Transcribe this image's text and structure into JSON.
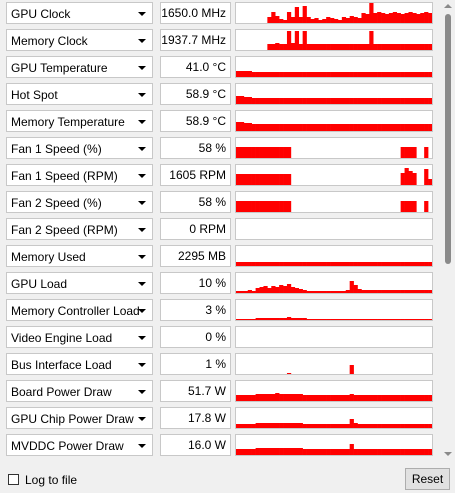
{
  "colors": {
    "graph_fill": "#ff0000",
    "graph_background": "#ffffff"
  },
  "sensors": [
    {
      "label": "GPU Clock",
      "value": "1650.0 MHz",
      "icon": "chevron-down-icon",
      "trace": [
        0,
        0,
        0,
        0,
        0,
        0,
        0,
        0,
        0.3,
        0.55,
        0.35,
        0.2,
        0.15,
        0.55,
        0.3,
        0.8,
        0.3,
        0.85,
        0.3,
        0.2,
        0.25,
        0.15,
        0.2,
        0.3,
        0.25,
        0.2,
        0.15,
        0.3,
        0.25,
        0.35,
        0.3,
        0.25,
        0.5,
        0.45,
        1.0,
        0.5,
        0.55,
        0.5,
        0.45,
        0.5,
        0.55,
        0.5,
        0.45,
        0.5,
        0.55,
        0.5,
        0.45,
        0.5,
        0.55,
        0.5
      ]
    },
    {
      "label": "Memory Clock",
      "value": "1937.7 MHz",
      "icon": "chevron-down-icon",
      "trace": [
        0,
        0,
        0,
        0,
        0,
        0,
        0,
        0,
        0.3,
        0.3,
        0.35,
        0.3,
        0.3,
        0.95,
        0.35,
        0.95,
        0.3,
        0.95,
        0.3,
        0.3,
        0.3,
        0.3,
        0.3,
        0.3,
        0.3,
        0.3,
        0.3,
        0.3,
        0.3,
        0.3,
        0.3,
        0.3,
        0.3,
        0.3,
        0.95,
        0.3,
        0.3,
        0.3,
        0.3,
        0.3,
        0.3,
        0.3,
        0.3,
        0.3,
        0.3,
        0.3,
        0.3,
        0.3,
        0.3,
        0.3
      ]
    },
    {
      "label": "GPU Temperature",
      "value": "41.0 °C",
      "icon": "chevron-down-icon",
      "trace": [
        0.3,
        0.3,
        0.3,
        0.3,
        0.25,
        0.25,
        0.25,
        0.25,
        0.25,
        0.25,
        0.25,
        0.25,
        0.25,
        0.25,
        0.25,
        0.25,
        0.25,
        0.25,
        0.25,
        0.25,
        0.25,
        0.25,
        0.25,
        0.25,
        0.25,
        0.25,
        0.25,
        0.25,
        0.25,
        0.25,
        0.25,
        0.25,
        0.25,
        0.25,
        0.25,
        0.25,
        0.25,
        0.25,
        0.25,
        0.25,
        0.25,
        0.25,
        0.25,
        0.25,
        0.25,
        0.25,
        0.25,
        0.25,
        0.25,
        0.25
      ]
    },
    {
      "label": "Hot Spot",
      "value": "58.9 °C",
      "icon": "chevron-down-icon",
      "trace": [
        0.4,
        0.4,
        0.35,
        0.35,
        0.3,
        0.3,
        0.3,
        0.3,
        0.3,
        0.3,
        0.3,
        0.3,
        0.3,
        0.3,
        0.3,
        0.3,
        0.3,
        0.3,
        0.3,
        0.3,
        0.3,
        0.3,
        0.3,
        0.3,
        0.3,
        0.3,
        0.3,
        0.3,
        0.3,
        0.3,
        0.3,
        0.3,
        0.3,
        0.3,
        0.3,
        0.3,
        0.3,
        0.3,
        0.3,
        0.3,
        0.3,
        0.3,
        0.3,
        0.3,
        0.3,
        0.3,
        0.3,
        0.3,
        0.3,
        0.3
      ]
    },
    {
      "label": "Memory Temperature",
      "value": "58.9 °C",
      "icon": "chevron-down-icon",
      "trace": [
        0.45,
        0.45,
        0.4,
        0.4,
        0.35,
        0.35,
        0.35,
        0.35,
        0.35,
        0.35,
        0.35,
        0.35,
        0.35,
        0.35,
        0.35,
        0.35,
        0.35,
        0.35,
        0.35,
        0.35,
        0.35,
        0.35,
        0.35,
        0.35,
        0.35,
        0.35,
        0.35,
        0.35,
        0.35,
        0.35,
        0.35,
        0.35,
        0.35,
        0.35,
        0.35,
        0.35,
        0.35,
        0.35,
        0.35,
        0.35,
        0.35,
        0.35,
        0.35,
        0.35,
        0.35,
        0.35,
        0.35,
        0.35,
        0.35,
        0.35
      ]
    },
    {
      "label": "Fan 1 Speed (%)",
      "value": "58 %",
      "icon": "chevron-down-icon",
      "trace": [
        0.55,
        0.55,
        0.55,
        0.55,
        0.55,
        0.55,
        0.55,
        0.55,
        0.55,
        0.55,
        0.55,
        0.55,
        0.55,
        0.55,
        0,
        0,
        0,
        0,
        0,
        0,
        0,
        0,
        0,
        0,
        0,
        0,
        0,
        0,
        0,
        0,
        0,
        0,
        0,
        0,
        0,
        0,
        0,
        0,
        0,
        0,
        0,
        0,
        0.55,
        0.55,
        0.55,
        0.55,
        0,
        0,
        0.55,
        0
      ]
    },
    {
      "label": "Fan 1 Speed (RPM)",
      "value": "1605 RPM",
      "icon": "chevron-down-icon",
      "trace": [
        0.55,
        0.55,
        0.55,
        0.55,
        0.55,
        0.55,
        0.55,
        0.55,
        0.55,
        0.55,
        0.55,
        0.55,
        0.55,
        0.55,
        0,
        0,
        0,
        0,
        0,
        0,
        0,
        0,
        0,
        0,
        0,
        0,
        0,
        0,
        0,
        0,
        0,
        0,
        0,
        0,
        0,
        0,
        0,
        0,
        0,
        0,
        0,
        0,
        0.6,
        0.85,
        0.7,
        0.6,
        0,
        0,
        0.8,
        0.3
      ]
    },
    {
      "label": "Fan 2 Speed (%)",
      "value": "58 %",
      "icon": "chevron-down-icon",
      "trace": [
        0.55,
        0.55,
        0.55,
        0.55,
        0.55,
        0.55,
        0.55,
        0.55,
        0.55,
        0.55,
        0.55,
        0.55,
        0.55,
        0.55,
        0,
        0,
        0,
        0,
        0,
        0,
        0,
        0,
        0,
        0,
        0,
        0,
        0,
        0,
        0,
        0,
        0,
        0,
        0,
        0,
        0,
        0,
        0,
        0,
        0,
        0,
        0,
        0,
        0.55,
        0.55,
        0.55,
        0.55,
        0,
        0,
        0.55,
        0
      ]
    },
    {
      "label": "Fan 2 Speed (RPM)",
      "value": "0 RPM",
      "icon": "chevron-down-icon",
      "trace": [
        0,
        0,
        0,
        0,
        0,
        0,
        0,
        0,
        0,
        0,
        0,
        0,
        0,
        0,
        0,
        0,
        0,
        0,
        0,
        0,
        0,
        0,
        0,
        0,
        0,
        0,
        0,
        0,
        0,
        0,
        0,
        0,
        0,
        0,
        0,
        0,
        0,
        0,
        0,
        0,
        0,
        0,
        0,
        0,
        0,
        0,
        0,
        0,
        0,
        0
      ]
    },
    {
      "label": "Memory Used",
      "value": "2295 MB",
      "icon": "chevron-down-icon",
      "trace": [
        0.2,
        0.2,
        0.2,
        0.2,
        0.2,
        0.2,
        0.2,
        0.2,
        0.2,
        0.2,
        0.2,
        0.2,
        0.2,
        0.2,
        0.2,
        0.2,
        0.2,
        0.2,
        0.2,
        0.2,
        0.2,
        0.2,
        0.2,
        0.2,
        0.2,
        0.2,
        0.2,
        0.2,
        0.2,
        0.2,
        0.2,
        0.2,
        0.2,
        0.2,
        0.2,
        0.2,
        0.2,
        0.2,
        0.2,
        0.2,
        0.2,
        0.2,
        0.2,
        0.2,
        0.2,
        0.2,
        0.2,
        0.2,
        0.2,
        0.2
      ]
    },
    {
      "label": "GPU Load",
      "value": "10 %",
      "icon": "chevron-down-icon",
      "trace": [
        0.1,
        0.1,
        0.1,
        0.15,
        0.1,
        0.25,
        0.3,
        0.35,
        0.25,
        0.35,
        0.3,
        0.4,
        0.35,
        0.45,
        0.3,
        0.25,
        0.2,
        0.15,
        0.1,
        0.1,
        0.1,
        0.1,
        0.1,
        0.1,
        0.1,
        0.1,
        0.1,
        0.1,
        0.15,
        0.6,
        0.4,
        0.2,
        0.15,
        0.15,
        0.15,
        0.15,
        0.15,
        0.15,
        0.15,
        0.15,
        0.15,
        0.15,
        0.15,
        0.15,
        0.15,
        0.15,
        0.15,
        0.15,
        0.15,
        0.15
      ]
    },
    {
      "label": "Memory Controller Load",
      "value": "3 %",
      "icon": "chevron-down-icon",
      "trace": [
        0.05,
        0.05,
        0.05,
        0.05,
        0.05,
        0.1,
        0.1,
        0.1,
        0.1,
        0.1,
        0.1,
        0.1,
        0.1,
        0.15,
        0.1,
        0.1,
        0.1,
        0.1,
        0.05,
        0.05,
        0.05,
        0.05,
        0.05,
        0.05,
        0.05,
        0.05,
        0.05,
        0.05,
        0.05,
        0.05,
        0.05,
        0.05,
        0.05,
        0.05,
        0.05,
        0.05,
        0.05,
        0.05,
        0.05,
        0.05,
        0.05,
        0.05,
        0.05,
        0.05,
        0.05,
        0.05,
        0.05,
        0.05,
        0.05,
        0.05
      ]
    },
    {
      "label": "Video Engine Load",
      "value": "0 %",
      "icon": "chevron-down-icon",
      "trace": [
        0,
        0,
        0,
        0,
        0,
        0,
        0,
        0,
        0,
        0,
        0,
        0,
        0,
        0,
        0,
        0,
        0,
        0,
        0,
        0,
        0,
        0,
        0,
        0,
        0,
        0,
        0,
        0,
        0,
        0,
        0,
        0,
        0,
        0,
        0,
        0,
        0,
        0,
        0,
        0,
        0,
        0,
        0,
        0,
        0,
        0,
        0,
        0,
        0,
        0
      ]
    },
    {
      "label": "Bus Interface Load",
      "value": "1 %",
      "icon": "chevron-down-icon",
      "trace": [
        0,
        0,
        0,
        0,
        0,
        0,
        0,
        0,
        0,
        0,
        0,
        0,
        0,
        0.05,
        0,
        0,
        0,
        0,
        0,
        0,
        0,
        0,
        0,
        0,
        0,
        0,
        0,
        0,
        0,
        0.45,
        0,
        0,
        0,
        0,
        0,
        0,
        0,
        0,
        0,
        0,
        0,
        0,
        0,
        0,
        0,
        0,
        0,
        0,
        0,
        0
      ]
    },
    {
      "label": "Board Power Draw",
      "value": "51.7 W",
      "icon": "chevron-down-icon",
      "trace": [
        0.3,
        0.3,
        0.3,
        0.3,
        0.3,
        0.35,
        0.35,
        0.35,
        0.35,
        0.35,
        0.4,
        0.35,
        0.35,
        0.35,
        0.35,
        0.35,
        0.35,
        0.3,
        0.3,
        0.3,
        0.3,
        0.3,
        0.3,
        0.3,
        0.3,
        0.3,
        0.3,
        0.3,
        0.3,
        0.35,
        0.3,
        0.3,
        0.3,
        0.3,
        0.3,
        0.3,
        0.3,
        0.3,
        0.3,
        0.3,
        0.3,
        0.3,
        0.3,
        0.3,
        0.3,
        0.3,
        0.3,
        0.3,
        0.3,
        0.3
      ]
    },
    {
      "label": "GPU Chip Power Draw",
      "value": "17.8 W",
      "icon": "chevron-down-icon",
      "trace": [
        0.2,
        0.2,
        0.2,
        0.2,
        0.2,
        0.25,
        0.25,
        0.25,
        0.25,
        0.25,
        0.25,
        0.25,
        0.25,
        0.25,
        0.25,
        0.25,
        0.25,
        0.2,
        0.2,
        0.2,
        0.2,
        0.2,
        0.2,
        0.2,
        0.2,
        0.2,
        0.2,
        0.2,
        0.2,
        0.45,
        0.25,
        0.2,
        0.2,
        0.2,
        0.2,
        0.2,
        0.2,
        0.2,
        0.2,
        0.2,
        0.2,
        0.2,
        0.2,
        0.2,
        0.2,
        0.2,
        0.2,
        0.2,
        0.2,
        0.2
      ]
    },
    {
      "label": "MVDDC Power Draw",
      "value": "16.0 W",
      "icon": "chevron-down-icon",
      "trace": [
        0.3,
        0.3,
        0.3,
        0.3,
        0.3,
        0.35,
        0.35,
        0.35,
        0.35,
        0.35,
        0.35,
        0.35,
        0.35,
        0.35,
        0.35,
        0.35,
        0.35,
        0.3,
        0.3,
        0.3,
        0.3,
        0.3,
        0.3,
        0.3,
        0.3,
        0.3,
        0.3,
        0.3,
        0.3,
        0.55,
        0.3,
        0.3,
        0.3,
        0.3,
        0.3,
        0.3,
        0.3,
        0.3,
        0.3,
        0.3,
        0.3,
        0.3,
        0.3,
        0.3,
        0.3,
        0.3,
        0.3,
        0.3,
        0.3,
        0.3
      ]
    }
  ],
  "footer": {
    "log_checkbox_checked": false,
    "log_label": "Log to file",
    "reset_label": "Reset"
  }
}
